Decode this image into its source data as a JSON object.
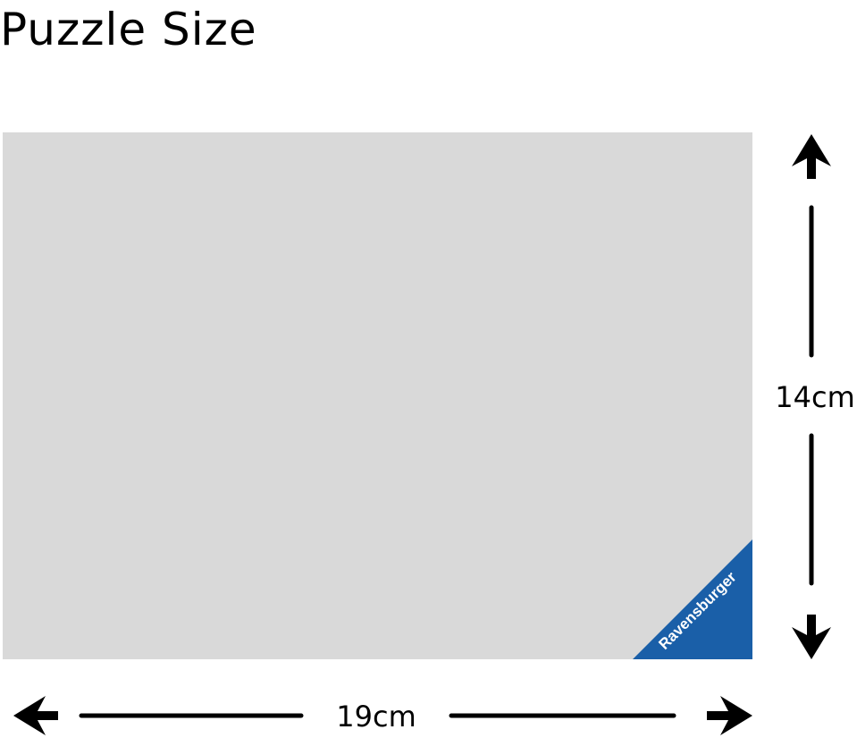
{
  "title": "Puzzle Size",
  "dimensions": {
    "width": "19cm",
    "height": "14cm"
  },
  "brand": {
    "name": "Ravensburger",
    "color": "#1a5fa8"
  },
  "colors": {
    "puzzle_area": "#d9d9d9",
    "arrows": "#000000"
  },
  "icons": [
    "arrow-up-icon",
    "arrow-down-icon",
    "arrow-left-icon",
    "arrow-right-icon"
  ]
}
